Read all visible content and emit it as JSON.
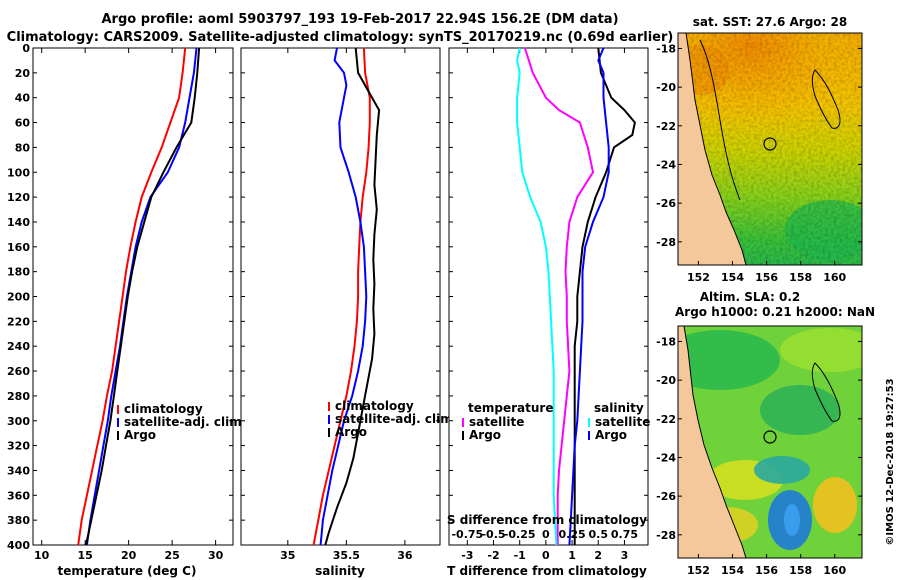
{
  "header": {
    "line1": "Argo profile: aoml 5903797_193 19-Feb-2017 22.94S 156.2E (DM data)",
    "line2": "Climatology: CARS2009. Satellite-adjusted climatology: synTS_20170219.nc (0.69d earlier)"
  },
  "footer": {
    "stamp": "©IMOS 12-Dec-2018 19:27:53"
  },
  "colors": {
    "climatology": "#ff0000",
    "satellite": "#0000ff",
    "argo": "#000000",
    "t_satellite_diff": "#ff00ff",
    "s_satellite_diff": "#00ffff"
  },
  "chart_data": [
    {
      "type": "line",
      "name": "temperature-profile",
      "xlabel": "temperature (deg C)",
      "ylabel": "",
      "xlim": [
        9,
        32
      ],
      "ylim": [
        400,
        0
      ],
      "xticks": [
        10,
        15,
        20,
        25,
        30
      ],
      "yticks": [
        0,
        20,
        40,
        60,
        80,
        100,
        120,
        140,
        160,
        180,
        200,
        220,
        240,
        260,
        280,
        300,
        320,
        340,
        360,
        380,
        400
      ],
      "legend": {
        "position": "lower-right",
        "entries": [
          "climatology",
          "satellite-adj. clim.",
          "Argo"
        ]
      },
      "series": [
        {
          "name": "climatology",
          "color": "#ff0000",
          "points": [
            [
              26.5,
              0
            ],
            [
              26.2,
              20
            ],
            [
              25.8,
              40
            ],
            [
              24.8,
              60
            ],
            [
              23.8,
              80
            ],
            [
              22.6,
              100
            ],
            [
              21.5,
              120
            ],
            [
              20.8,
              140
            ],
            [
              20.2,
              160
            ],
            [
              19.7,
              180
            ],
            [
              19.3,
              200
            ],
            [
              18.9,
              220
            ],
            [
              18.5,
              240
            ],
            [
              18.1,
              260
            ],
            [
              17.5,
              280
            ],
            [
              17.0,
              300
            ],
            [
              16.4,
              320
            ],
            [
              15.8,
              340
            ],
            [
              15.2,
              360
            ],
            [
              14.6,
              380
            ],
            [
              14.2,
              400
            ]
          ]
        },
        {
          "name": "satellite-adj. clim.",
          "color": "#0000ff",
          "points": [
            [
              27.8,
              0
            ],
            [
              27.5,
              20
            ],
            [
              27.0,
              40
            ],
            [
              26.5,
              60
            ],
            [
              25.8,
              80
            ],
            [
              24.5,
              100
            ],
            [
              22.5,
              120
            ],
            [
              21.5,
              140
            ],
            [
              20.8,
              160
            ],
            [
              20.3,
              180
            ],
            [
              19.8,
              200
            ],
            [
              19.4,
              220
            ],
            [
              19.0,
              240
            ],
            [
              18.5,
              260
            ],
            [
              18.0,
              280
            ],
            [
              17.6,
              300
            ],
            [
              17.1,
              320
            ],
            [
              16.6,
              340
            ],
            [
              16.1,
              360
            ],
            [
              15.6,
              380
            ],
            [
              15.2,
              400
            ]
          ]
        },
        {
          "name": "Argo",
          "color": "#000000",
          "points": [
            [
              28.1,
              0
            ],
            [
              27.9,
              20
            ],
            [
              27.6,
              40
            ],
            [
              27.2,
              60
            ],
            [
              25.5,
              80
            ],
            [
              24.0,
              100
            ],
            [
              22.6,
              120
            ],
            [
              21.8,
              140
            ],
            [
              21.0,
              160
            ],
            [
              20.4,
              180
            ],
            [
              19.9,
              200
            ],
            [
              19.5,
              220
            ],
            [
              19.1,
              240
            ],
            [
              18.7,
              260
            ],
            [
              18.3,
              280
            ],
            [
              17.9,
              300
            ],
            [
              17.4,
              320
            ],
            [
              16.9,
              340
            ],
            [
              16.3,
              360
            ],
            [
              15.7,
              380
            ],
            [
              15.1,
              400
            ]
          ]
        }
      ]
    },
    {
      "type": "line",
      "name": "salinity-profile",
      "xlabel": "salinity",
      "xlim": [
        34.6,
        36.3
      ],
      "ylim": [
        400,
        0
      ],
      "xticks": [
        35,
        35.5,
        36
      ],
      "xticklabels": [
        "35",
        "35.5",
        "36"
      ],
      "legend": {
        "position": "lower-right",
        "entries": [
          "climatology",
          "satellite-adj. clim.",
          "Argo"
        ]
      },
      "series": [
        {
          "name": "climatology",
          "color": "#ff0000",
          "points": [
            [
              35.65,
              0
            ],
            [
              35.66,
              20
            ],
            [
              35.7,
              40
            ],
            [
              35.7,
              60
            ],
            [
              35.69,
              80
            ],
            [
              35.67,
              100
            ],
            [
              35.64,
              120
            ],
            [
              35.62,
              140
            ],
            [
              35.61,
              160
            ],
            [
              35.6,
              180
            ],
            [
              35.6,
              200
            ],
            [
              35.59,
              220
            ],
            [
              35.57,
              240
            ],
            [
              35.54,
              260
            ],
            [
              35.5,
              280
            ],
            [
              35.45,
              300
            ],
            [
              35.4,
              320
            ],
            [
              35.35,
              340
            ],
            [
              35.3,
              360
            ],
            [
              35.26,
              380
            ],
            [
              35.22,
              400
            ]
          ]
        },
        {
          "name": "satellite-adj. clim.",
          "color": "#0000ff",
          "points": [
            [
              35.42,
              0
            ],
            [
              35.4,
              10
            ],
            [
              35.48,
              20
            ],
            [
              35.5,
              30
            ],
            [
              35.48,
              40
            ],
            [
              35.44,
              60
            ],
            [
              35.45,
              80
            ],
            [
              35.52,
              100
            ],
            [
              35.58,
              120
            ],
            [
              35.62,
              140
            ],
            [
              35.65,
              160
            ],
            [
              35.66,
              180
            ],
            [
              35.67,
              200
            ],
            [
              35.66,
              220
            ],
            [
              35.64,
              240
            ],
            [
              35.6,
              260
            ],
            [
              35.55,
              280
            ],
            [
              35.48,
              300
            ],
            [
              35.43,
              320
            ],
            [
              35.38,
              340
            ],
            [
              35.34,
              360
            ],
            [
              35.3,
              380
            ],
            [
              35.28,
              400
            ]
          ]
        },
        {
          "name": "Argo",
          "color": "#000000",
          "points": [
            [
              35.58,
              0
            ],
            [
              35.6,
              20
            ],
            [
              35.72,
              40
            ],
            [
              35.78,
              50
            ],
            [
              35.76,
              70
            ],
            [
              35.75,
              90
            ],
            [
              35.74,
              110
            ],
            [
              35.76,
              130
            ],
            [
              35.74,
              150
            ],
            [
              35.73,
              170
            ],
            [
              35.74,
              190
            ],
            [
              35.73,
              210
            ],
            [
              35.74,
              230
            ],
            [
              35.72,
              250
            ],
            [
              35.68,
              270
            ],
            [
              35.64,
              290
            ],
            [
              35.6,
              310
            ],
            [
              35.56,
              330
            ],
            [
              35.5,
              350
            ],
            [
              35.42,
              370
            ],
            [
              35.35,
              390
            ],
            [
              35.32,
              400
            ]
          ]
        }
      ]
    },
    {
      "type": "line",
      "name": "difference-profile",
      "xlabel": "T difference from climatology",
      "xlim": [
        -3.7,
        3.9
      ],
      "ylim": [
        400,
        0
      ],
      "xticks": [
        -3,
        -2,
        -1,
        0,
        1,
        2,
        3
      ],
      "xticklabels": [
        "-3",
        "-2",
        "-1",
        "0",
        "1",
        "2",
        "3"
      ],
      "s_axis_label": "S difference from climatology",
      "s_axis_ticklabels": [
        "-0.75",
        "-0.5",
        "-0.25",
        "0",
        "0.25",
        "0.5",
        "0.75"
      ],
      "legend_temperature": {
        "title": "temperature",
        "entries": [
          "satellite",
          "Argo"
        ]
      },
      "legend_salinity": {
        "title": "salinity",
        "entries": [
          "satellite",
          "Argo"
        ]
      },
      "series": [
        {
          "name": "T satellite",
          "color": "#ff00ff",
          "points": [
            [
              -0.8,
              0
            ],
            [
              -0.5,
              20
            ],
            [
              0.0,
              40
            ],
            [
              0.5,
              50
            ],
            [
              1.3,
              60
            ],
            [
              1.6,
              80
            ],
            [
              1.8,
              100
            ],
            [
              1.2,
              120
            ],
            [
              0.9,
              140
            ],
            [
              0.8,
              160
            ],
            [
              0.75,
              180
            ],
            [
              0.8,
              200
            ],
            [
              0.8,
              220
            ],
            [
              0.85,
              240
            ],
            [
              0.9,
              260
            ],
            [
              0.8,
              280
            ],
            [
              0.7,
              300
            ],
            [
              0.6,
              320
            ],
            [
              0.5,
              340
            ],
            [
              0.45,
              360
            ],
            [
              0.45,
              380
            ],
            [
              0.45,
              400
            ]
          ]
        },
        {
          "name": "T Argo",
          "color": "#000000",
          "points": [
            [
              2.0,
              0
            ],
            [
              2.1,
              20
            ],
            [
              2.5,
              40
            ],
            [
              3.0,
              50
            ],
            [
              3.4,
              60
            ],
            [
              3.3,
              70
            ],
            [
              2.6,
              80
            ],
            [
              2.3,
              100
            ],
            [
              1.9,
              120
            ],
            [
              1.6,
              140
            ],
            [
              1.4,
              160
            ],
            [
              1.3,
              180
            ],
            [
              1.2,
              200
            ],
            [
              1.2,
              220
            ],
            [
              1.1,
              240
            ],
            [
              1.1,
              260
            ],
            [
              1.1,
              280
            ],
            [
              1.1,
              300
            ],
            [
              1.1,
              320
            ],
            [
              1.1,
              340
            ],
            [
              1.1,
              360
            ],
            [
              1.1,
              380
            ],
            [
              1.1,
              400
            ]
          ]
        },
        {
          "name": "S satellite",
          "color": "#00ffff",
          "points": [
            [
              -1.0,
              0
            ],
            [
              -1.1,
              10
            ],
            [
              -1.0,
              20
            ],
            [
              -1.1,
              40
            ],
            [
              -1.1,
              60
            ],
            [
              -1.0,
              80
            ],
            [
              -0.9,
              100
            ],
            [
              -0.6,
              120
            ],
            [
              -0.2,
              140
            ],
            [
              0.0,
              160
            ],
            [
              0.1,
              180
            ],
            [
              0.15,
              200
            ],
            [
              0.2,
              220
            ],
            [
              0.25,
              240
            ],
            [
              0.3,
              260
            ],
            [
              0.3,
              280
            ],
            [
              0.3,
              300
            ],
            [
              0.3,
              320
            ],
            [
              0.3,
              340
            ],
            [
              0.3,
              360
            ],
            [
              0.35,
              380
            ],
            [
              0.4,
              400
            ]
          ]
        },
        {
          "name": "S Argo",
          "color": "#0000ff",
          "points": [
            [
              2.2,
              0
            ],
            [
              2.0,
              10
            ],
            [
              2.2,
              20
            ],
            [
              2.2,
              40
            ],
            [
              2.3,
              60
            ],
            [
              2.4,
              80
            ],
            [
              2.4,
              100
            ],
            [
              2.2,
              120
            ],
            [
              1.8,
              140
            ],
            [
              1.5,
              160
            ],
            [
              1.4,
              180
            ],
            [
              1.4,
              200
            ],
            [
              1.4,
              220
            ],
            [
              1.35,
              240
            ],
            [
              1.3,
              260
            ],
            [
              1.25,
              280
            ],
            [
              1.2,
              300
            ],
            [
              1.1,
              320
            ],
            [
              1.05,
              340
            ],
            [
              1.0,
              360
            ],
            [
              0.95,
              380
            ],
            [
              0.9,
              400
            ]
          ]
        }
      ]
    },
    {
      "type": "heatmap",
      "name": "sst-map",
      "title": "sat. SST: 27.6 Argo: 28",
      "xlim": [
        150.8,
        161.6
      ],
      "ylim": [
        -29.2,
        -17.2
      ],
      "xticks": [
        152,
        154,
        156,
        158,
        160
      ],
      "yticks": [
        -18,
        -20,
        -22,
        -24,
        -26,
        -28
      ],
      "argo_position": [
        156.2,
        -22.94
      ]
    },
    {
      "type": "heatmap",
      "name": "sla-map",
      "title": "Altim. SLA: 0.2",
      "subtitle": "Argo h1000: 0.21 h2000: NaN",
      "xlim": [
        150.8,
        161.6
      ],
      "ylim": [
        -29.2,
        -17.2
      ],
      "xticks": [
        152,
        154,
        156,
        158,
        160
      ],
      "yticks": [
        -18,
        -20,
        -22,
        -24,
        -26,
        -28
      ],
      "argo_position": [
        156.2,
        -22.94
      ]
    }
  ]
}
